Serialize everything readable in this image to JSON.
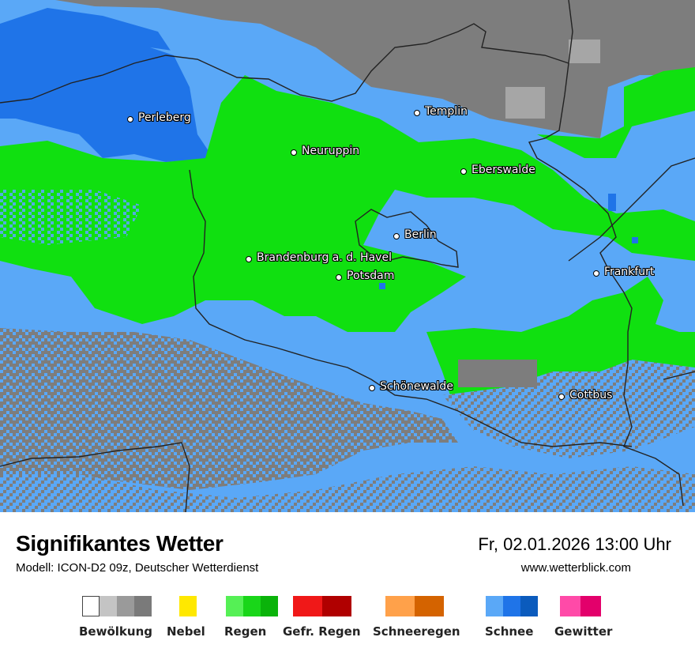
{
  "map": {
    "cities": [
      {
        "name": "Perleberg"
      },
      {
        "name": "Templin"
      },
      {
        "name": "Neuruppin"
      },
      {
        "name": "Eberswalde"
      },
      {
        "name": "Berlin"
      },
      {
        "name": "Brandenburg a. d. Havel"
      },
      {
        "name": "Potsdam"
      },
      {
        "name": "Frankfurt"
      },
      {
        "name": "Schönewalde"
      },
      {
        "name": "Cottbus"
      }
    ],
    "colors": {
      "snow_light": "#5aa8f7",
      "snow_mid": "#1f74e8",
      "rain": "#10e010",
      "cloud": "#7d7d7d",
      "cloud_light": "#a6a6a6"
    }
  },
  "footer": {
    "title": "Signifikantes Wetter",
    "model": "Modell: ICON-D2 09z, Deutscher Wetterdienst",
    "datetime": "Fr, 02.01.2026 13:00 Uhr",
    "website": "www.wetterblick.com"
  },
  "legend": [
    {
      "label": "Bewölkung",
      "colors": [
        "#ffffff",
        "#c4c4c4",
        "#9a9a9a",
        "#7a7a7a"
      ]
    },
    {
      "label": "Nebel",
      "colors": [
        "#ffe800"
      ]
    },
    {
      "label": "Regen",
      "colors": [
        "#55f055",
        "#19d619",
        "#0ab30a"
      ]
    },
    {
      "label": "Gefr. Regen",
      "colors": [
        "#f01818",
        "#b00000"
      ]
    },
    {
      "label": "Schneeregen",
      "colors": [
        "#ffa14a",
        "#d46300"
      ]
    },
    {
      "label": "Schnee",
      "colors": [
        "#5aa8f7",
        "#1f74e8",
        "#0b5bbd"
      ]
    },
    {
      "label": "Gewitter",
      "colors": [
        "#ff4aa8",
        "#e3006b"
      ]
    }
  ]
}
